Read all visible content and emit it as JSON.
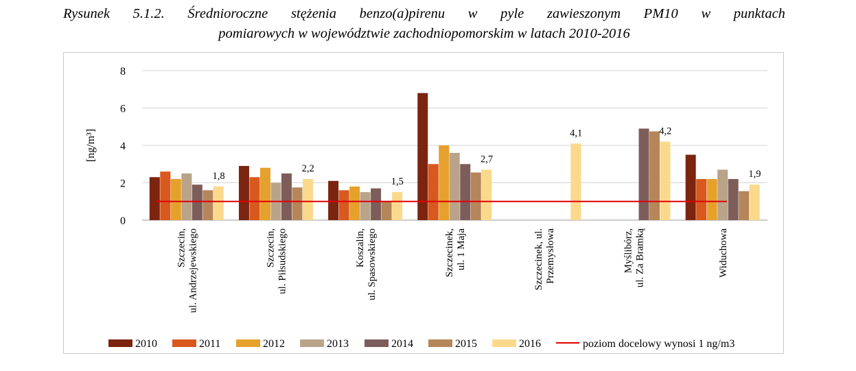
{
  "caption": {
    "words": [
      "Rysunek",
      "5.1.2.",
      "Średnioroczne",
      "stężenia",
      "benzo(a)pirenu",
      "w",
      "pyle",
      "zawieszonym",
      "PM10",
      "w",
      "punktach"
    ],
    "line2": "pomiarowych w województwie zachodniopomorskim w latach 2010-2016"
  },
  "chart_data": {
    "type": "bar",
    "ylabel": "[ng/m³]",
    "ylim": [
      0,
      8
    ],
    "yticks": [
      0,
      2,
      4,
      6,
      8
    ],
    "grid": true,
    "legend_position": "bottom",
    "categories": [
      [
        "Szczecin,",
        "ul. Andrzejewskiego"
      ],
      [
        "Szczecin,",
        "ul. Piłsudskiego"
      ],
      [
        "Koszalin,",
        "ul. Spasowskiego"
      ],
      [
        "Szczecinek,",
        "ul. 1 Maja"
      ],
      [
        "Szczecinek, ul.",
        "Przemysłowa"
      ],
      [
        "Myślibórz,",
        "ul. Za Bramką"
      ],
      [
        "Widuchowa"
      ]
    ],
    "series": [
      {
        "name": "2010",
        "color": "#7b2410",
        "values": [
          2.3,
          2.9,
          2.1,
          6.8,
          null,
          null,
          3.5
        ]
      },
      {
        "name": "2011",
        "color": "#d9581e",
        "values": [
          2.6,
          2.3,
          1.6,
          3.0,
          null,
          null,
          2.2
        ]
      },
      {
        "name": "2012",
        "color": "#e6a02c",
        "values": [
          2.2,
          2.8,
          1.8,
          4.0,
          null,
          null,
          2.2
        ]
      },
      {
        "name": "2013",
        "color": "#b9a48a",
        "values": [
          2.5,
          2.0,
          1.5,
          3.6,
          null,
          null,
          2.7
        ]
      },
      {
        "name": "2014",
        "color": "#7d5d5a",
        "values": [
          1.9,
          2.5,
          1.7,
          3.0,
          null,
          4.9,
          2.2
        ]
      },
      {
        "name": "2015",
        "color": "#b5865a",
        "values": [
          1.6,
          1.75,
          1.0,
          2.55,
          null,
          4.75,
          1.55
        ]
      },
      {
        "name": "2016",
        "color": "#fbd98c",
        "values": [
          1.8,
          2.2,
          1.5,
          2.7,
          4.1,
          4.2,
          1.9
        ]
      }
    ],
    "data_labels": [
      "1,8",
      "2,2",
      "1,5",
      "2,7",
      "4,1",
      "4,2",
      "1,9"
    ],
    "target_line": {
      "name": "poziom docelowy wynosi 1 ng/m3",
      "value": 1,
      "color": "#e00000"
    }
  }
}
